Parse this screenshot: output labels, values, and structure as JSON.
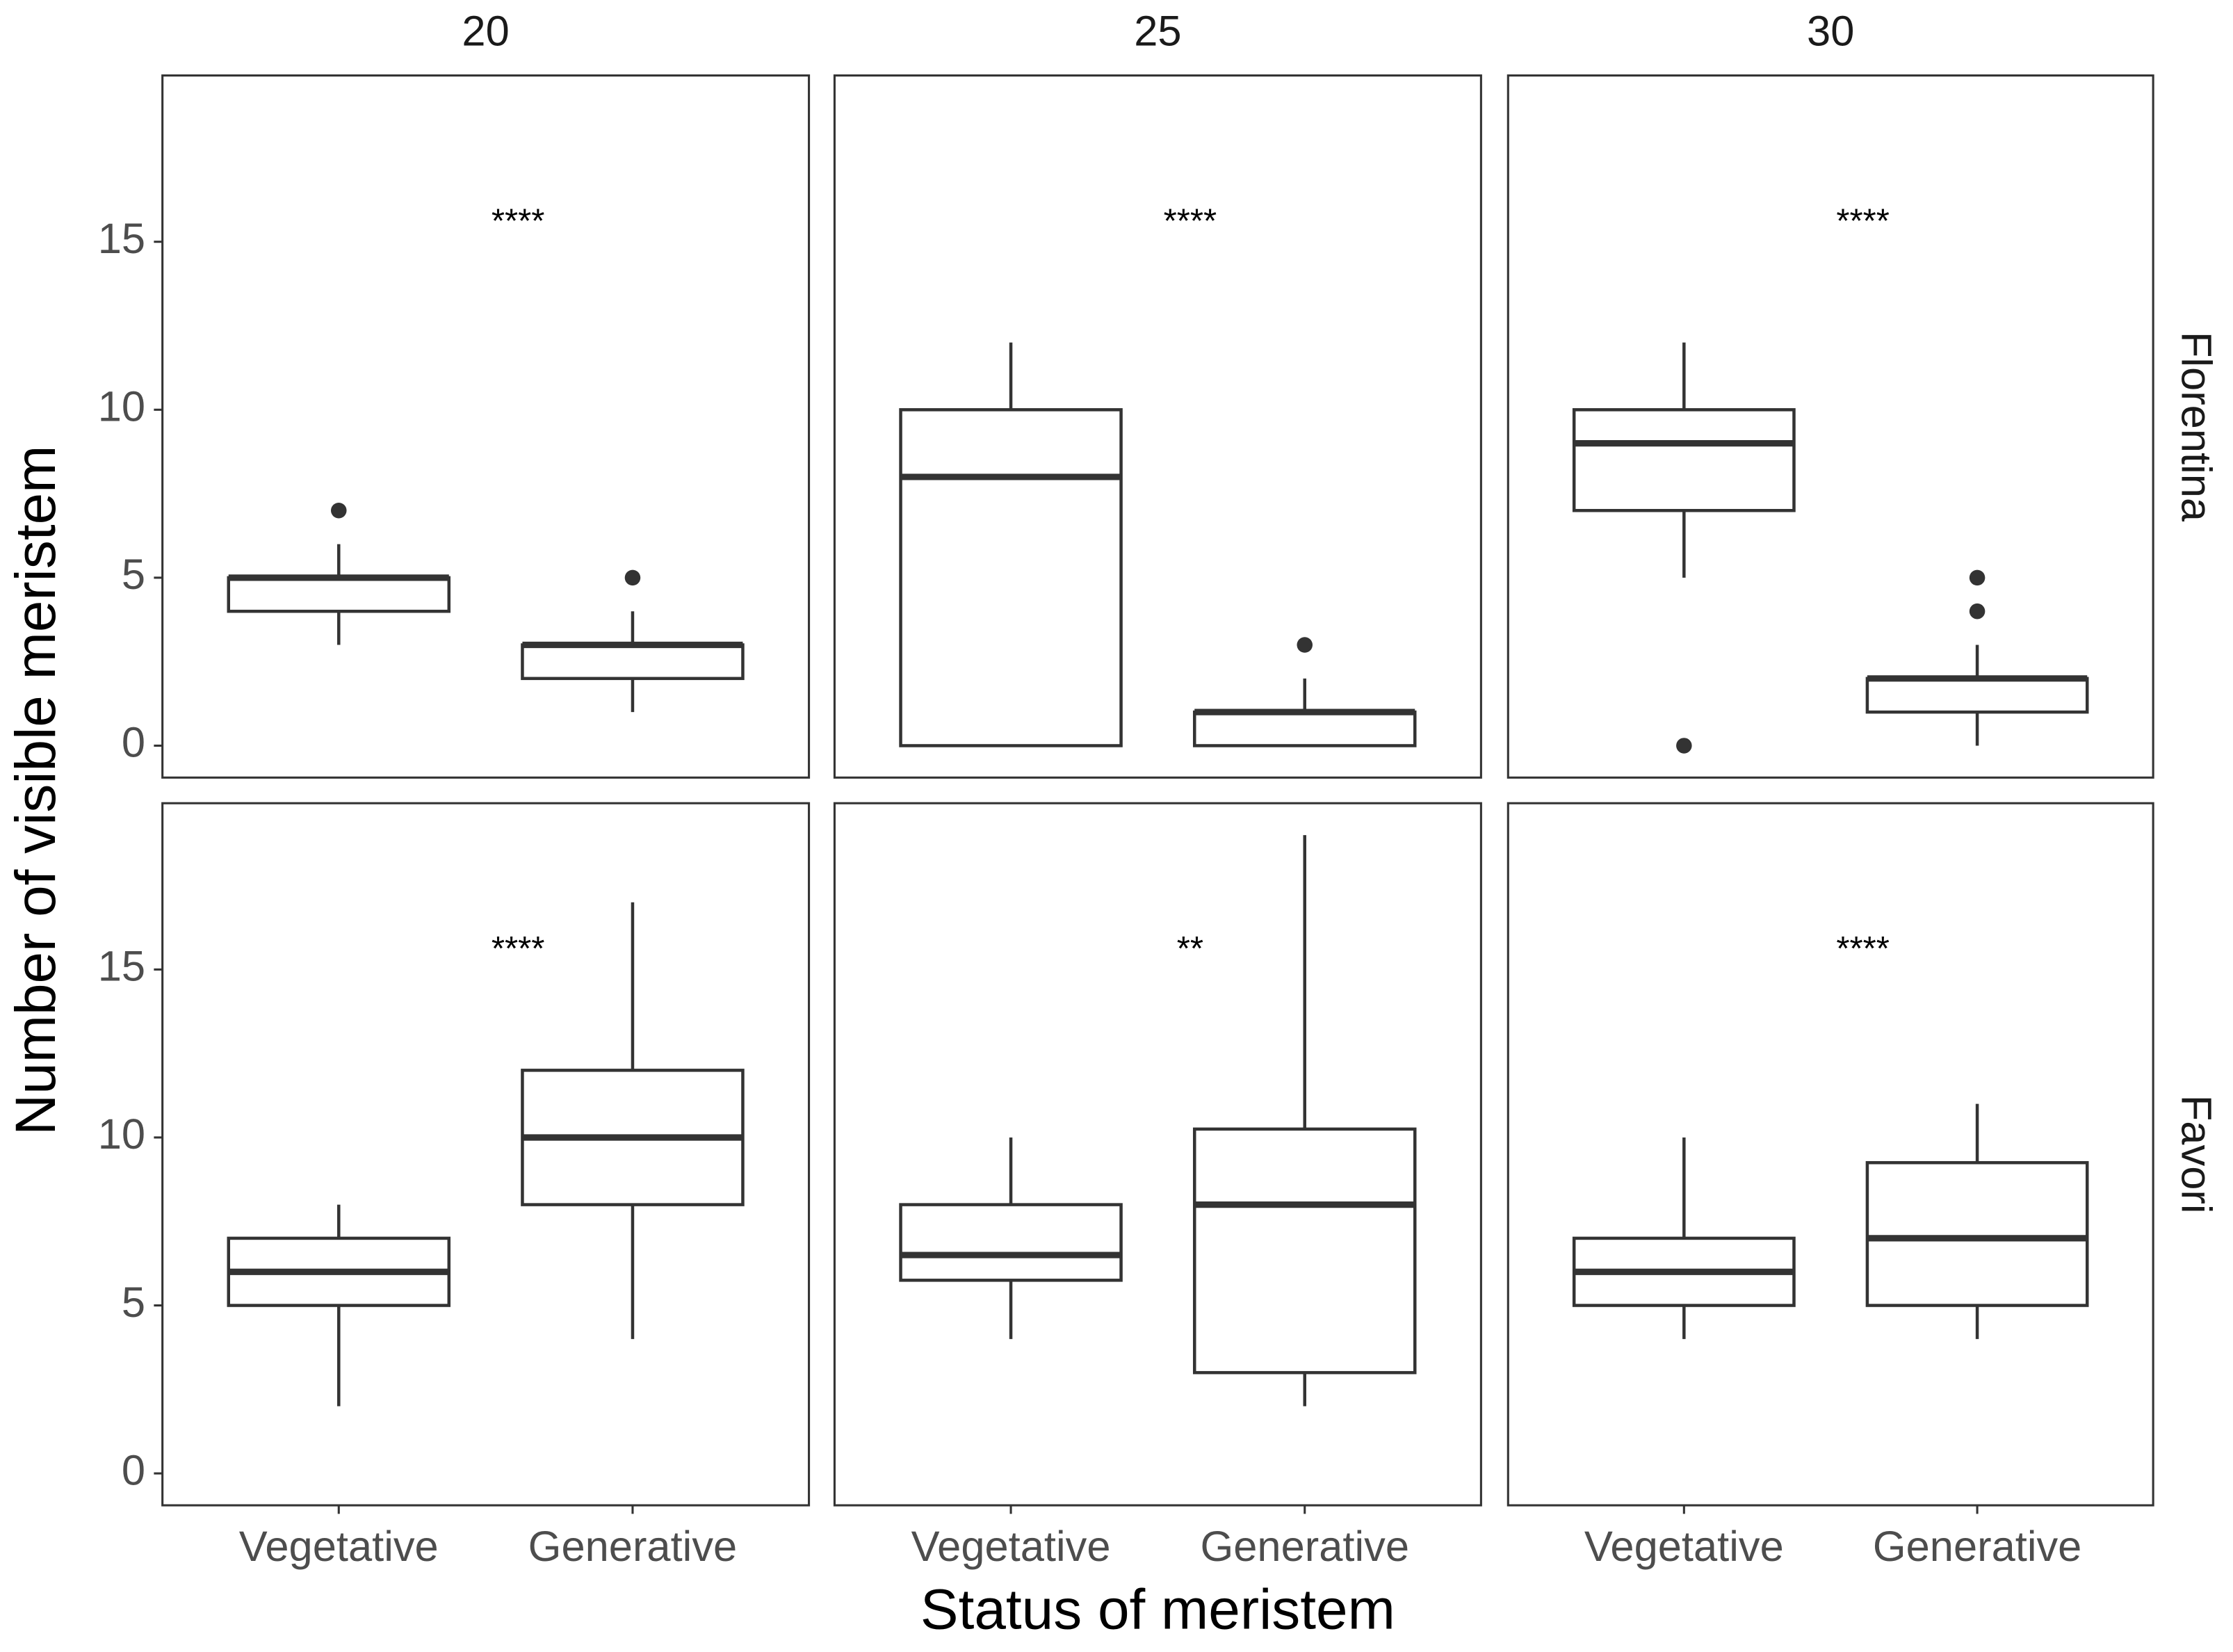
{
  "chart_data": {
    "type": "box",
    "x_label": "Status of meristem",
    "y_label": "Number of visible meristem",
    "columns": [
      "20",
      "25",
      "30"
    ],
    "rows": [
      "Florentina",
      "Favori"
    ],
    "categories": [
      "Vegetative",
      "Generative"
    ],
    "ylim": [
      -0.95,
      19.95
    ],
    "yticks": [
      0,
      5,
      10,
      15
    ],
    "grid": false,
    "color": "#333333",
    "panels": [
      {
        "annotation": "****",
        "boxes": [
          {
            "low": 3,
            "q1": 4,
            "median": 5,
            "q3": 5,
            "high": 6,
            "outliers": [
              7
            ]
          },
          {
            "low": 1,
            "q1": 2,
            "median": 3,
            "q3": 3,
            "high": 4,
            "outliers": [
              5
            ]
          }
        ]
      },
      {
        "annotation": "****",
        "boxes": [
          {
            "low": 0,
            "q1": 0,
            "median": 8,
            "q3": 10,
            "high": 12,
            "outliers": []
          },
          {
            "low": 0,
            "q1": 0,
            "median": 1,
            "q3": 1,
            "high": 2,
            "outliers": [
              3
            ]
          }
        ]
      },
      {
        "annotation": "****",
        "boxes": [
          {
            "low": 5,
            "q1": 7,
            "median": 9,
            "q3": 10,
            "high": 12,
            "outliers": [
              0
            ]
          },
          {
            "low": 0,
            "q1": 1,
            "median": 2,
            "q3": 2,
            "high": 3,
            "outliers": [
              4,
              5
            ]
          }
        ]
      },
      {
        "annotation": "****",
        "boxes": [
          {
            "low": 2,
            "q1": 5,
            "median": 6,
            "q3": 7,
            "high": 8,
            "outliers": []
          },
          {
            "low": 4,
            "q1": 8,
            "median": 10,
            "q3": 12,
            "high": 17,
            "outliers": []
          }
        ]
      },
      {
        "annotation": "**",
        "boxes": [
          {
            "low": 4,
            "q1": 5.75,
            "median": 6.5,
            "q3": 8,
            "high": 10,
            "outliers": []
          },
          {
            "low": 2,
            "q1": 3,
            "median": 8,
            "q3": 10.25,
            "high": 19,
            "outliers": []
          }
        ]
      },
      {
        "annotation": "****",
        "boxes": [
          {
            "low": 4,
            "q1": 5,
            "median": 6,
            "q3": 7,
            "high": 10,
            "outliers": []
          },
          {
            "low": 4,
            "q1": 5,
            "median": 7,
            "q3": 9.25,
            "high": 11,
            "outliers": []
          }
        ]
      }
    ]
  }
}
